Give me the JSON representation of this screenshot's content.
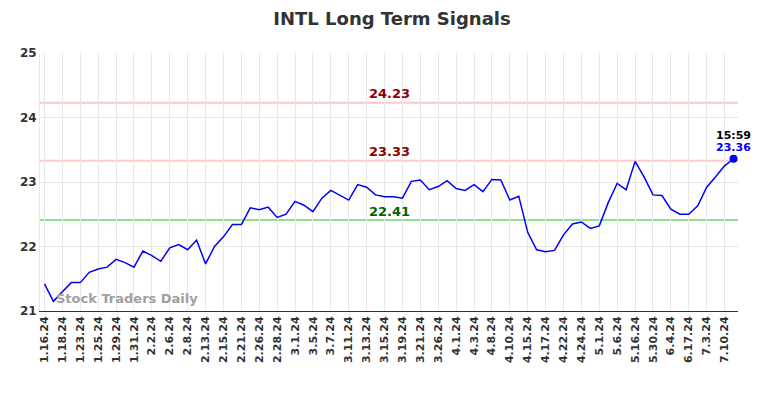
{
  "chart_data": {
    "type": "line",
    "title": "INTL Long Term Signals",
    "categories": [
      "1.16.24",
      null,
      "1.18.24",
      null,
      "1.23.24",
      null,
      "1.25.24",
      null,
      "1.29.24",
      null,
      "1.31.24",
      null,
      "2.2.24",
      null,
      "2.6.24",
      null,
      "2.8.24",
      null,
      "2.13.24",
      null,
      "2.15.24",
      null,
      "2.21.24",
      null,
      "2.26.24",
      null,
      "2.28.24",
      null,
      "3.1.24",
      null,
      "3.5.24",
      null,
      "3.7.24",
      null,
      "3.11.24",
      null,
      "3.13.24",
      null,
      "3.15.24",
      null,
      "3.19.24",
      null,
      "3.21.24",
      null,
      "3.26.24",
      null,
      "4.1.24",
      null,
      "4.3.24",
      null,
      "4.8.24",
      null,
      "4.10.24",
      null,
      "4.15.24",
      null,
      "4.17.24",
      null,
      "4.22.24",
      null,
      "4.24.24",
      null,
      "5.1.24",
      null,
      "5.6.24",
      null,
      "5.16.24",
      null,
      "5.30.24",
      null,
      "6.4.24",
      null,
      "6.17.24",
      null,
      "7.3.24",
      null,
      "7.10.24",
      null
    ],
    "values": [
      21.42,
      21.15,
      21.3,
      21.44,
      21.44,
      21.6,
      21.65,
      21.68,
      21.8,
      21.75,
      21.68,
      21.93,
      21.86,
      21.77,
      21.98,
      22.03,
      21.95,
      22.1,
      21.73,
      22.0,
      22.15,
      22.34,
      22.34,
      22.6,
      22.57,
      22.61,
      22.45,
      22.5,
      22.7,
      22.64,
      22.54,
      22.75,
      22.87,
      22.8,
      22.72,
      22.96,
      22.92,
      22.8,
      22.77,
      22.77,
      22.75,
      23.01,
      23.03,
      22.88,
      22.93,
      23.02,
      22.9,
      22.87,
      22.96,
      22.85,
      23.04,
      23.03,
      22.72,
      22.78,
      22.22,
      21.95,
      21.92,
      21.94,
      22.18,
      22.35,
      22.38,
      22.28,
      22.32,
      22.68,
      22.98,
      22.88,
      23.32,
      23.08,
      22.8,
      22.79,
      22.58,
      22.5,
      22.5,
      22.63,
      22.92,
      23.08,
      23.25,
      23.36
    ],
    "color": "#0000ff",
    "ylim": [
      21,
      25
    ],
    "yticks": [
      21,
      22,
      23,
      24,
      25
    ],
    "grid": true,
    "levels": [
      {
        "value": 24.23,
        "color": "#ffc8c8",
        "label_color": "#8b0000"
      },
      {
        "value": 23.33,
        "color": "#ffc8c8",
        "label_color": "#8b0000"
      },
      {
        "value": 22.41,
        "color": "#90e090",
        "label_color": "#006400"
      }
    ],
    "last_point": {
      "time": "15:59",
      "value": 23.36
    },
    "watermark": "Stock Traders Daily"
  }
}
